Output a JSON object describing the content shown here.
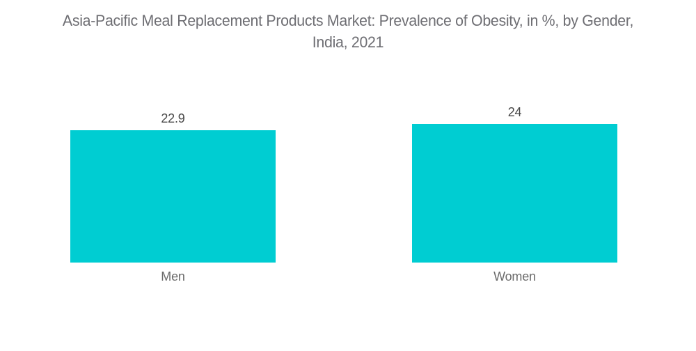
{
  "title": {
    "line1": "Asia-Pacific Meal Replacement Products Market: Prevalence of Obesity, in %, by Gender,",
    "line2": "India, 2021"
  },
  "chart_data": {
    "type": "bar",
    "title": "Asia-Pacific Meal Replacement Products Market: Prevalence of Obesity, in %, by Gender, India, 2021",
    "categories": [
      "Men",
      "Women"
    ],
    "values": [
      22.9,
      24
    ],
    "value_labels": [
      "22.9",
      "24"
    ],
    "xlabel": "",
    "ylabel": "",
    "ylim": [
      0,
      24
    ],
    "grid": false,
    "legend": false,
    "bar_color": "#00CDD2"
  },
  "colors": {
    "bar": "#00CDD2",
    "title_text": "#6E6E73",
    "value_text": "#474747",
    "category_text": "#6B6B6B",
    "background": "#FFFFFF"
  }
}
